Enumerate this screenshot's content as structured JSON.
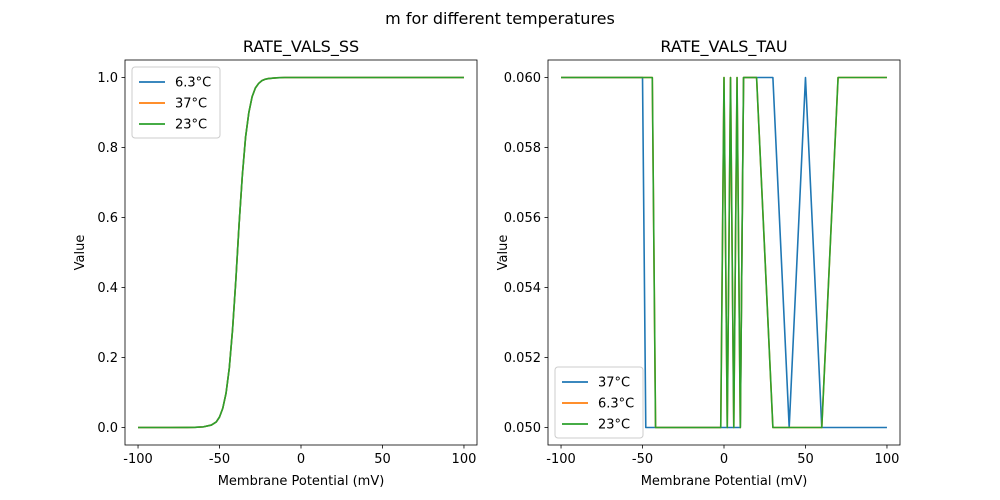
{
  "figure": {
    "suptitle": "m for different temperatures"
  },
  "colors": {
    "blue": "#1f77b4",
    "orange": "#ff7f0e",
    "green": "#2ca02c"
  },
  "chart_data": [
    {
      "type": "line",
      "title": "RATE_VALS_SS",
      "xlabel": "Membrane Potential (mV)",
      "ylabel": "Value",
      "xlim": [
        -108,
        108
      ],
      "ylim": [
        -0.05,
        1.05
      ],
      "xticks": [
        -100,
        -50,
        0,
        50,
        100
      ],
      "yticks": [
        0.0,
        0.2,
        0.4,
        0.6,
        0.8,
        1.0
      ],
      "ytick_labels": [
        "0.0",
        "0.2",
        "0.4",
        "0.6",
        "0.8",
        "1.0"
      ],
      "grid": false,
      "legend": "top-left",
      "x": [
        -100,
        -90,
        -80,
        -70,
        -65,
        -60,
        -55,
        -52,
        -50,
        -48,
        -46,
        -44,
        -42,
        -40,
        -38,
        -36,
        -34,
        -32,
        -30,
        -28,
        -26,
        -24,
        -22,
        -20,
        -15,
        -10,
        0,
        10,
        20,
        30,
        40,
        50,
        60,
        70,
        80,
        90,
        100
      ],
      "series": [
        {
          "name": "6.3°C",
          "color": "#1f77b4",
          "values": [
            0,
            0,
            0,
            0.0002,
            0.0005,
            0.0018,
            0.007,
            0.016,
            0.03,
            0.055,
            0.098,
            0.17,
            0.28,
            0.42,
            0.58,
            0.72,
            0.83,
            0.9,
            0.945,
            0.97,
            0.983,
            0.991,
            0.995,
            0.997,
            0.999,
            1,
            1,
            1,
            1,
            1,
            1,
            1,
            1,
            1,
            1,
            1,
            1
          ]
        },
        {
          "name": "37°C",
          "color": "#ff7f0e",
          "values": [
            0,
            0,
            0,
            0.0002,
            0.0005,
            0.0018,
            0.007,
            0.016,
            0.03,
            0.055,
            0.098,
            0.17,
            0.28,
            0.42,
            0.58,
            0.72,
            0.83,
            0.9,
            0.945,
            0.97,
            0.983,
            0.991,
            0.995,
            0.997,
            0.999,
            1,
            1,
            1,
            1,
            1,
            1,
            1,
            1,
            1,
            1,
            1,
            1
          ]
        },
        {
          "name": "23°C",
          "color": "#2ca02c",
          "values": [
            0,
            0,
            0,
            0.0002,
            0.0005,
            0.0018,
            0.007,
            0.016,
            0.03,
            0.055,
            0.098,
            0.17,
            0.28,
            0.42,
            0.58,
            0.72,
            0.83,
            0.9,
            0.945,
            0.97,
            0.983,
            0.991,
            0.995,
            0.997,
            0.999,
            1,
            1,
            1,
            1,
            1,
            1,
            1,
            1,
            1,
            1,
            1,
            1
          ]
        }
      ]
    },
    {
      "type": "line",
      "title": "RATE_VALS_TAU",
      "xlabel": "Membrane Potential (mV)",
      "ylabel": "Value",
      "xlim": [
        -108,
        108
      ],
      "ylim": [
        0.0495,
        0.0605
      ],
      "xticks": [
        -100,
        -50,
        0,
        50,
        100
      ],
      "yticks": [
        0.05,
        0.052,
        0.054,
        0.056,
        0.058,
        0.06
      ],
      "ytick_labels": [
        "0.050",
        "0.052",
        "0.054",
        "0.056",
        "0.058",
        "0.060"
      ],
      "grid": false,
      "legend": "bottom-left",
      "series": [
        {
          "name": "37°C",
          "color": "#1f77b4",
          "x": [
            -100,
            -50,
            -48,
            0,
            2,
            4,
            6,
            8,
            10,
            12,
            14,
            30,
            40,
            50,
            60,
            100
          ],
          "values": [
            0.06,
            0.06,
            0.05,
            0.05,
            0.05,
            0.05,
            0.05,
            0.05,
            0.05,
            0.06,
            0.06,
            0.06,
            0.05,
            0.06,
            0.05,
            0.05
          ]
        },
        {
          "name": "6.3°C",
          "color": "#ff7f0e",
          "x": [
            -100,
            -44,
            -42,
            -2,
            0,
            2,
            4,
            6,
            8,
            10,
            12,
            20,
            30,
            60,
            70,
            100
          ],
          "values": [
            0.06,
            0.06,
            0.05,
            0.05,
            0.06,
            0.05,
            0.06,
            0.05,
            0.06,
            0.05,
            0.06,
            0.06,
            0.05,
            0.05,
            0.06,
            0.06
          ]
        },
        {
          "name": "23°C",
          "color": "#2ca02c",
          "x": [
            -100,
            -44,
            -42,
            -2,
            0,
            2,
            4,
            6,
            8,
            10,
            12,
            20,
            30,
            60,
            70,
            100
          ],
          "values": [
            0.06,
            0.06,
            0.05,
            0.05,
            0.06,
            0.05,
            0.06,
            0.05,
            0.06,
            0.05,
            0.06,
            0.06,
            0.05,
            0.05,
            0.06,
            0.06
          ]
        }
      ]
    }
  ]
}
